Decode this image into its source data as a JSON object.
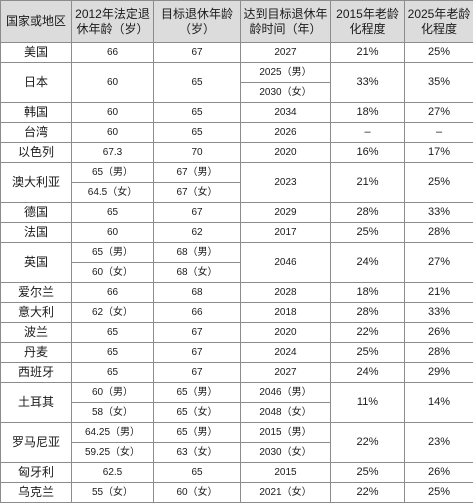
{
  "header": {
    "country": "国家或地区",
    "retire_2012": "2012年法定退休年龄（岁）",
    "target_age": "目标退休年龄（岁）",
    "target_time": "达到目标退休年龄时间（年）",
    "aging_2015": "2015年老龄化程度",
    "aging_2025": "2025年老龄化程度"
  },
  "rows": [
    {
      "country": "美国",
      "lines": [
        {
          "age2012": "66",
          "target": "67",
          "year": "2027"
        }
      ],
      "a2015": "21%",
      "a2025": "25%"
    },
    {
      "country": "日本",
      "lines": [
        {
          "age2012": "60",
          "target": "65",
          "year": "2025（男）"
        },
        {
          "age2012": "",
          "target": "",
          "year": "2030（女）"
        }
      ],
      "a2015": "33%",
      "a2025": "35%"
    },
    {
      "country": "韩国",
      "lines": [
        {
          "age2012": "60",
          "target": "65",
          "year": "2034"
        }
      ],
      "a2015": "18%",
      "a2025": "27%"
    },
    {
      "country": "台湾",
      "lines": [
        {
          "age2012": "60",
          "target": "65",
          "year": "2026"
        }
      ],
      "a2015": "–",
      "a2025": "–"
    },
    {
      "country": "以色列",
      "lines": [
        {
          "age2012": "67.3",
          "target": "70",
          "year": "2020"
        }
      ],
      "a2015": "16%",
      "a2025": "17%"
    },
    {
      "country": "澳大利亚",
      "lines": [
        {
          "age2012": "65（男）",
          "target": "67（男）",
          "year": "2023"
        },
        {
          "age2012": "64.5（女）",
          "target": "67（女）",
          "year": ""
        }
      ],
      "a2015": "21%",
      "a2025": "25%"
    },
    {
      "country": "德国",
      "lines": [
        {
          "age2012": "65",
          "target": "67",
          "year": "2029"
        }
      ],
      "a2015": "28%",
      "a2025": "33%"
    },
    {
      "country": "法国",
      "lines": [
        {
          "age2012": "60",
          "target": "62",
          "year": "2017"
        }
      ],
      "a2015": "25%",
      "a2025": "28%"
    },
    {
      "country": "英国",
      "lines": [
        {
          "age2012": "65（男）",
          "target": "68（男）",
          "year": "2046"
        },
        {
          "age2012": "60（女）",
          "target": "68（女）",
          "year": ""
        }
      ],
      "a2015": "24%",
      "a2025": "27%"
    },
    {
      "country": "爱尔兰",
      "lines": [
        {
          "age2012": "66",
          "target": "68",
          "year": "2028"
        }
      ],
      "a2015": "18%",
      "a2025": "21%"
    },
    {
      "country": "意大利",
      "lines": [
        {
          "age2012": "62（女）",
          "target": "66",
          "year": "2018"
        }
      ],
      "a2015": "28%",
      "a2025": "33%"
    },
    {
      "country": "波兰",
      "lines": [
        {
          "age2012": "65",
          "target": "67",
          "year": "2020"
        }
      ],
      "a2015": "22%",
      "a2025": "26%"
    },
    {
      "country": "丹麦",
      "lines": [
        {
          "age2012": "65",
          "target": "67",
          "year": "2024"
        }
      ],
      "a2015": "25%",
      "a2025": "28%"
    },
    {
      "country": "西班牙",
      "lines": [
        {
          "age2012": "65",
          "target": "67",
          "year": "2027"
        }
      ],
      "a2015": "24%",
      "a2025": "29%"
    },
    {
      "country": "土耳其",
      "lines": [
        {
          "age2012": "60（男）",
          "target": "65（男）",
          "year": "2046（男）"
        },
        {
          "age2012": "58（女）",
          "target": "65（女）",
          "year": "2048（女）"
        }
      ],
      "a2015": "11%",
      "a2025": "14%"
    },
    {
      "country": "罗马尼亚",
      "lines": [
        {
          "age2012": "64.25（男）",
          "target": "65（男）",
          "year": "2015（男）"
        },
        {
          "age2012": "59.25（女）",
          "target": "63（女）",
          "year": "2030（女）"
        }
      ],
      "a2015": "22%",
      "a2025": "23%"
    },
    {
      "country": "匈牙利",
      "lines": [
        {
          "age2012": "62.5",
          "target": "65",
          "year": "2015"
        }
      ],
      "a2015": "25%",
      "a2025": "26%"
    },
    {
      "country": "乌克兰",
      "lines": [
        {
          "age2012": "55（女）",
          "target": "60（女）",
          "year": "2021（女）"
        }
      ],
      "a2015": "22%",
      "a2025": "25%"
    }
  ]
}
